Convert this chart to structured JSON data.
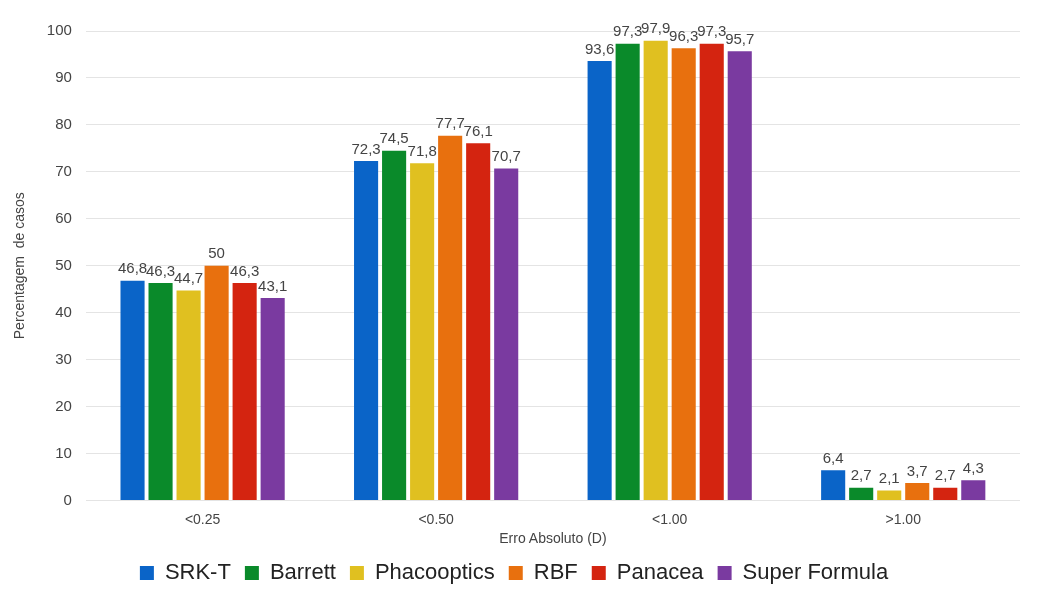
{
  "chart_data": {
    "type": "bar",
    "xlabel": "Erro Absoluto (D)",
    "ylabel": "Percentagem  de casos",
    "categories": [
      "<0.25",
      "<0.50",
      "<1.00",
      ">1.00"
    ],
    "ylim": [
      0,
      100
    ],
    "yticks": [
      0,
      10,
      20,
      30,
      40,
      50,
      60,
      70,
      80,
      90,
      100
    ],
    "grid": "y",
    "legend": "bottom",
    "series": [
      {
        "name": "SRK-T",
        "color": "#0a64c8",
        "values": [
          46.8,
          72.3,
          93.6,
          6.4
        ],
        "value_labels": [
          "46,8",
          "72,3",
          "93,6",
          "6,4"
        ]
      },
      {
        "name": "Barrett",
        "color": "#0a8a2a",
        "values": [
          46.3,
          74.5,
          97.3,
          2.7
        ],
        "value_labels": [
          "46,3",
          "74,5",
          "97,3",
          "2,7"
        ]
      },
      {
        "name": "Phacooptics",
        "color": "#e0c020",
        "values": [
          44.7,
          71.8,
          97.9,
          2.1
        ],
        "value_labels": [
          "44,7",
          "71,8",
          "97,9",
          "2,1"
        ]
      },
      {
        "name": "RBF",
        "color": "#e8700e",
        "values": [
          50,
          77.7,
          96.3,
          3.7
        ],
        "value_labels": [
          "50",
          "77,7",
          "96,3",
          "3,7"
        ]
      },
      {
        "name": "Panacea",
        "color": "#d42410",
        "values": [
          46.3,
          76.1,
          97.3,
          2.7
        ],
        "value_labels": [
          "46,3",
          "76,1",
          "97,3",
          "2,7"
        ]
      },
      {
        "name": "Super Formula",
        "color": "#7a3aa0",
        "values": [
          43.1,
          70.7,
          95.7,
          4.3
        ],
        "value_labels": [
          "43,1",
          "70,7",
          "95,7",
          "4,3"
        ]
      }
    ]
  }
}
